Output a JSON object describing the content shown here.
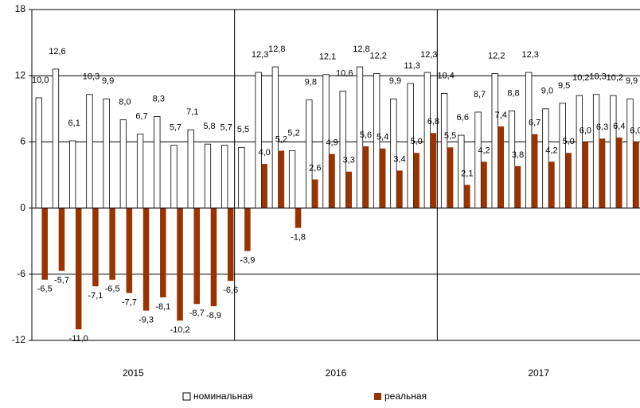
{
  "chart_data": {
    "type": "bar",
    "categories": [
      null,
      null,
      null,
      null,
      null,
      null,
      null,
      null,
      null,
      null,
      null,
      null,
      null,
      null,
      null,
      null,
      null,
      null,
      null,
      null,
      null,
      null,
      null,
      null,
      null,
      null,
      null,
      null,
      null,
      null,
      null,
      null,
      null,
      null,
      null,
      null
    ],
    "groups": [
      "2015",
      "2016",
      "2017"
    ],
    "series": [
      {
        "name": "номинальная",
        "color": "#ffffff",
        "values": [
          10.0,
          12.6,
          6.1,
          10.3,
          9.9,
          8.0,
          6.7,
          8.3,
          5.7,
          7.1,
          5.8,
          5.7,
          5.5,
          12.3,
          12.8,
          5.2,
          9.8,
          12.1,
          10.6,
          12.8,
          12.2,
          9.9,
          11.3,
          12.3,
          10.4,
          6.6,
          8.7,
          12.2,
          8.8,
          12.3,
          9.0,
          9.5,
          10.2,
          10.3,
          10.2,
          9.9
        ],
        "value_labels": [
          "10,0",
          "12,6",
          "6,1",
          "10,3",
          "9,9",
          "8,0",
          "6,7",
          "8,3",
          "5,7",
          "7,1",
          "5,8",
          "5,7",
          "5,5",
          "12,3",
          "12,8",
          "5,2",
          "9,8",
          "12,1",
          "10,6",
          "12,8",
          "12,2",
          "9,9",
          "11,3",
          "12,3",
          "10,4",
          "6,6",
          "8,7",
          "12,2",
          "8,8",
          "12,3",
          "9,0",
          "9,5",
          "10,2",
          "10,3",
          "10,2",
          "9,9"
        ]
      },
      {
        "name": "реальная",
        "color": "#993300",
        "values": [
          -6.5,
          -5.7,
          -11.0,
          -7.1,
          -6.5,
          -7.7,
          -9.3,
          -8.1,
          -10.2,
          -8.7,
          -8.9,
          -6.6,
          -3.9,
          4.0,
          5.2,
          -1.8,
          2.6,
          4.9,
          3.3,
          5.6,
          5.4,
          3.4,
          5.0,
          6.8,
          5.5,
          2.1,
          4.2,
          7.4,
          3.8,
          6.7,
          4.2,
          5.0,
          6.0,
          6.3,
          6.4,
          6.0
        ],
        "value_labels": [
          "-6,5",
          "-5,7",
          "-11,0",
          "-7,1",
          "-6,5",
          "-7,7",
          "-9,3",
          "-8,1",
          "-10,2",
          "-8,7",
          "-8,9",
          "-6,6",
          "-3,9",
          "4,0",
          "5,2",
          "-1,8",
          "2,6",
          "4,9",
          "3,3",
          "5,6",
          "5,4",
          "3,4",
          "5,0",
          "6,8",
          "5,5",
          "2,1",
          "4,2",
          "7,4",
          "3,8",
          "6,7",
          "4,2",
          "5,0",
          "6,0",
          "6,3",
          "6,4",
          "6,0"
        ]
      }
    ],
    "ylim": [
      -12,
      18
    ],
    "yticks": [
      -12,
      -6,
      0,
      6,
      12,
      18
    ],
    "grid": true
  }
}
